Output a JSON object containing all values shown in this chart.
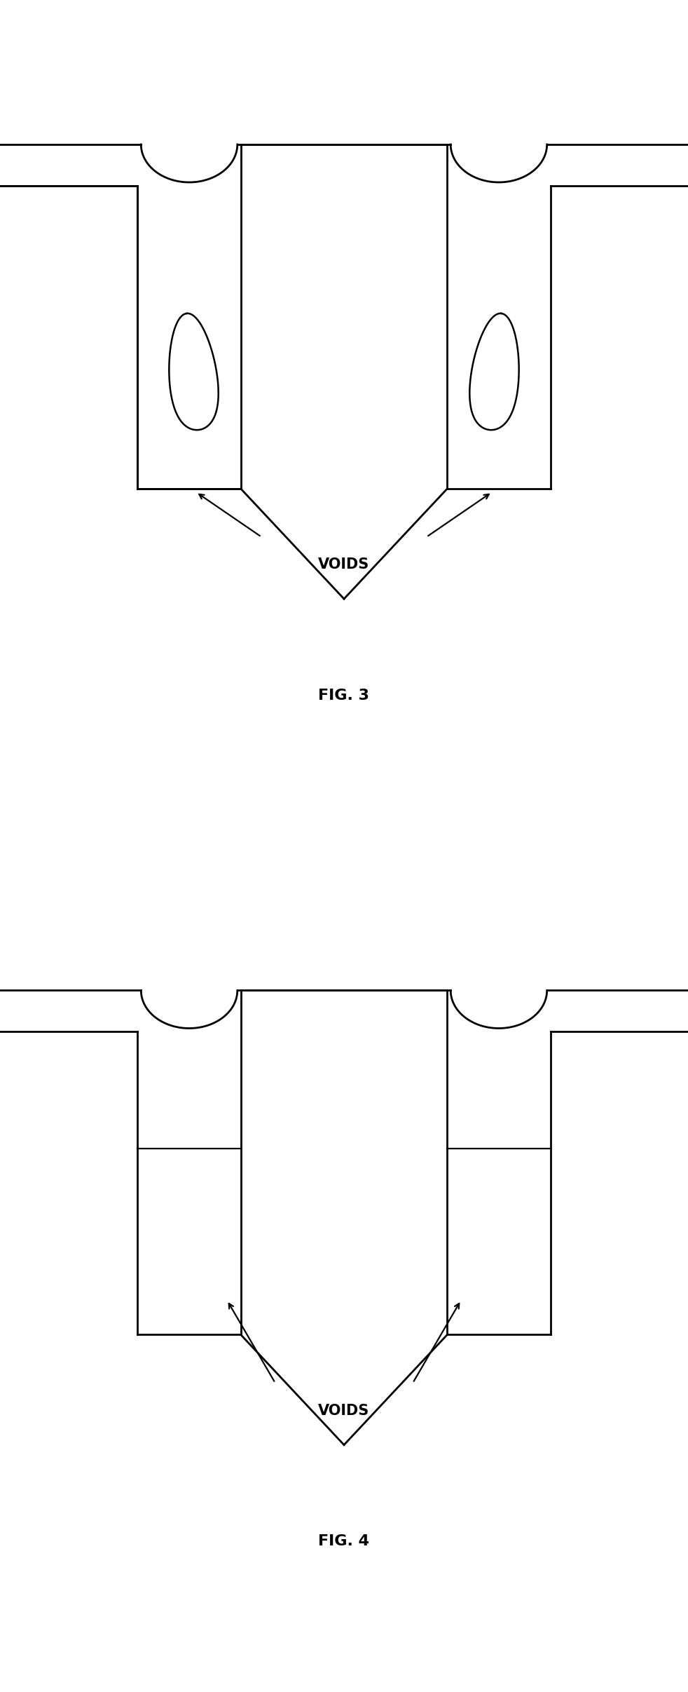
{
  "fig_width": 9.82,
  "fig_height": 24.13,
  "bg_color": "#ffffff",
  "line_color": "#000000",
  "line_width": 2.0,
  "fig3_label": "FIG. 3",
  "fig4_label": "FIG. 4",
  "voids_label": "VOIDS"
}
